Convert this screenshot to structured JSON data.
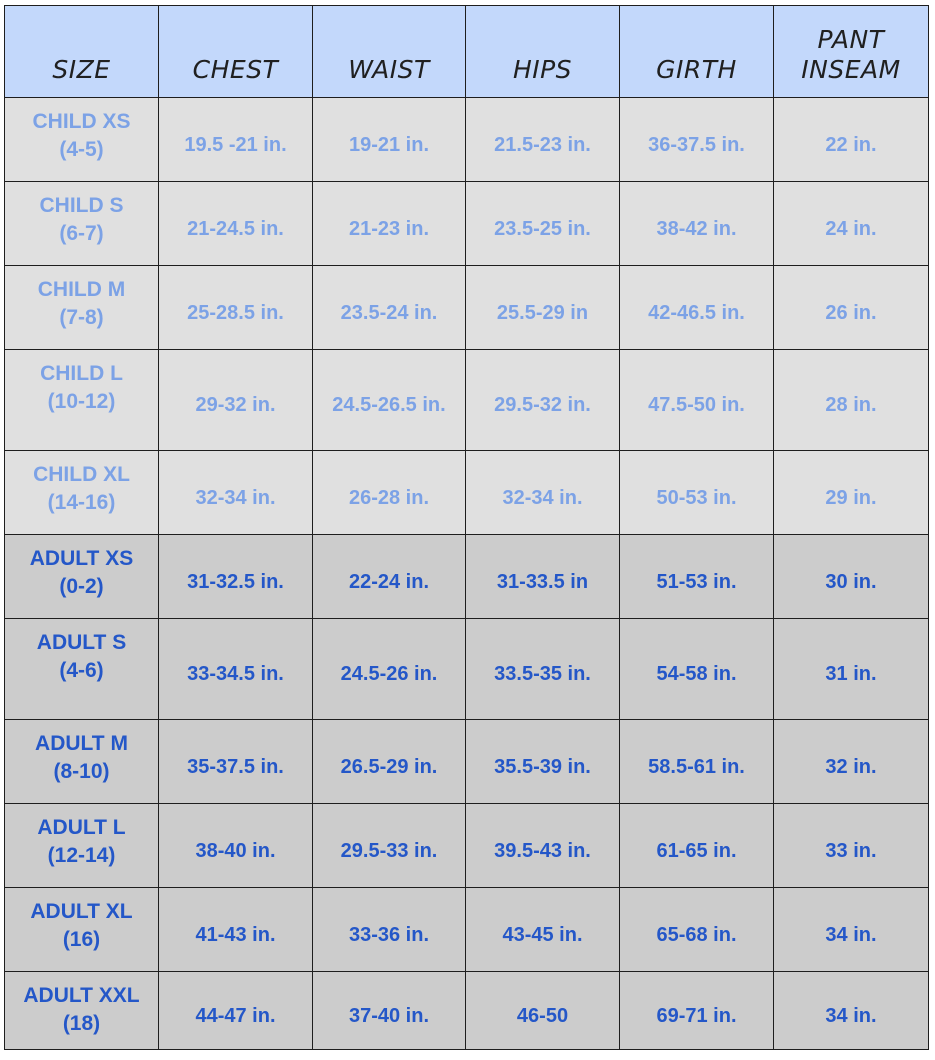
{
  "headers": [
    "SIZE",
    "CHEST",
    "WAIST",
    "HIPS",
    "GIRTH",
    "PANT\nINSEAM"
  ],
  "rows": [
    {
      "group": "child",
      "size": "CHILD XS\n(4-5)",
      "chest": "19.5 -21 in.",
      "waist": "19-21 in.",
      "hips": "21.5-23 in.",
      "girth": "36-37.5 in.",
      "inseam": "22 in."
    },
    {
      "group": "child",
      "size": "CHILD S\n(6-7)",
      "chest": "21-24.5 in.",
      "waist": "21-23 in.",
      "hips": "23.5-25 in.",
      "girth": "38-42 in.",
      "inseam": "24 in."
    },
    {
      "group": "child",
      "size": "CHILD M\n(7-8)",
      "chest": "25-28.5 in.",
      "waist": "23.5-24 in.",
      "hips": "25.5-29 in",
      "girth": "42-46.5 in.",
      "inseam": "26 in."
    },
    {
      "group": "child",
      "size": "CHILD L\n(10-12)",
      "chest": "29-32 in.",
      "waist": "24.5-26.5 in.",
      "hips": "29.5-32 in.",
      "girth": "47.5-50 in.",
      "inseam": "28 in."
    },
    {
      "group": "child",
      "size": "CHILD XL\n(14-16)",
      "chest": "32-34 in.",
      "waist": "26-28 in.",
      "hips": "32-34 in.",
      "girth": "50-53 in.",
      "inseam": "29 in."
    },
    {
      "group": "adult",
      "size": "ADULT XS\n(0-2)",
      "chest": "31-32.5 in.",
      "waist": "22-24 in.",
      "hips": "31-33.5 in",
      "girth": "51-53 in.",
      "inseam": "30 in."
    },
    {
      "group": "adult",
      "size": "ADULT S\n(4-6)",
      "chest": "33-34.5 in.",
      "waist": "24.5-26 in.",
      "hips": "33.5-35 in.",
      "girth": "54-58 in.",
      "inseam": "31 in."
    },
    {
      "group": "adult",
      "size": "ADULT M\n(8-10)",
      "chest": "35-37.5 in.",
      "waist": "26.5-29 in.",
      "hips": "35.5-39 in.",
      "girth": "58.5-61 in.",
      "inseam": "32 in."
    },
    {
      "group": "adult",
      "size": "ADULT L\n(12-14)",
      "chest": "38-40 in.",
      "waist": "29.5-33 in.",
      "hips": "39.5-43 in.",
      "girth": "61-65 in.",
      "inseam": "33 in."
    },
    {
      "group": "adult",
      "size": "ADULT XL\n(16)",
      "chest": "41-43 in.",
      "waist": "33-36 in.",
      "hips": "43-45 in.",
      "girth": "65-68 in.",
      "inseam": "34 in."
    },
    {
      "group": "adult",
      "size": "ADULT XXL\n(18)",
      "chest": "44-47 in.",
      "waist": "37-40 in.",
      "hips": "46-50",
      "girth": "69-71 in.",
      "inseam": "34 in."
    }
  ],
  "colors": {
    "header_bg": "#c3d8fb",
    "child_bg": "#e0e0e0",
    "child_text": "#7ca2e6",
    "adult_bg": "#cccccc",
    "adult_text": "#2457c8",
    "border": "#1e1e1e"
  }
}
